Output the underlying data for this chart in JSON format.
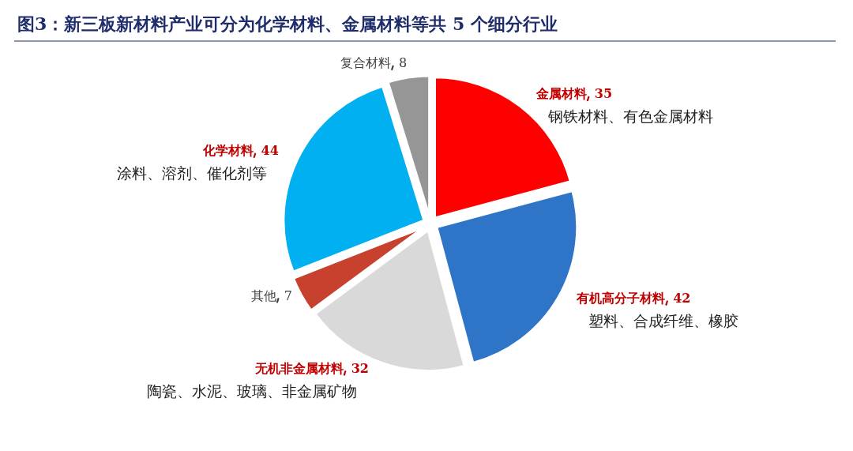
{
  "chart_data": {
    "type": "pie",
    "title": "图3：新三板新材料产业可分为化学材料、金属材料等共 5 个细分行业",
    "categories": [
      "金属材料",
      "有机高分子材料",
      "无机非金属材料",
      "其他",
      "化学材料",
      "复合材料"
    ],
    "values": [
      35,
      42,
      32,
      7,
      44,
      8
    ],
    "colors": [
      "#ff0000",
      "#2e75c8",
      "#d9d9d9",
      "#c8402e",
      "#00b0f0",
      "#969696"
    ],
    "data_labels": true,
    "annotations": [
      {
        "text": "钢铁材料、有色金属材料",
        "x": "金属材料"
      },
      {
        "text": "塑料、合成纤维、橡胶",
        "x": "有机高分子材料"
      },
      {
        "text": "陶瓷、水泥、玻璃、非金属矿物",
        "x": "无机非金属材料"
      },
      {
        "text": "涂料、溶剂、催化剂等",
        "x": "化学材料"
      }
    ]
  }
}
